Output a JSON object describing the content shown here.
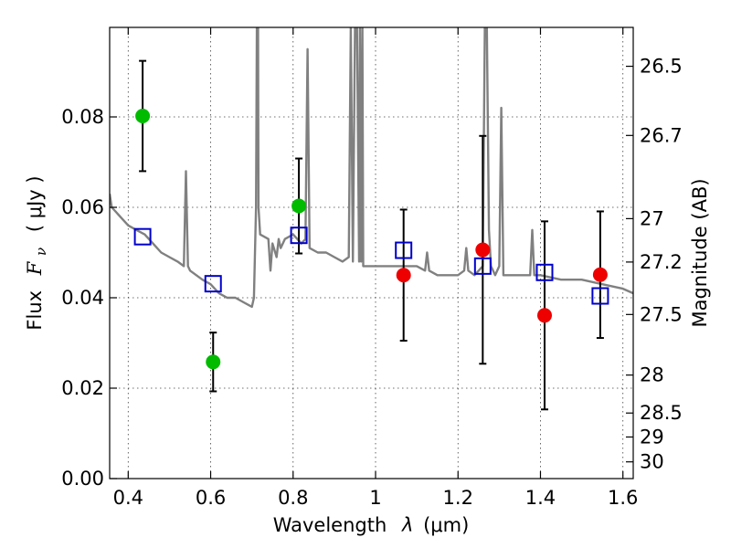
{
  "chart_data": {
    "type": "scatter",
    "xlabel": "Wavelength",
    "xlabel_symbol": "λ",
    "xlabel_unit": "(μm)",
    "ylabel_prefix": "Flux",
    "ylabel_symbol": "F",
    "ylabel_subscript": "ν",
    "ylabel_unit": "( μJy )",
    "ylabel_right": "Magnitude (AB)",
    "xlim": [
      0.355,
      1.625
    ],
    "ylim": [
      0.0,
      0.0998
    ],
    "x_ticks": [
      0.4,
      0.6,
      0.8,
      1.0,
      1.2,
      1.4,
      1.6
    ],
    "x_tick_labels": [
      "0.4",
      "0.6",
      "0.8",
      "1",
      "1.2",
      "1.4",
      "1.6"
    ],
    "y_ticks": [
      0.0,
      0.02,
      0.04,
      0.06,
      0.08
    ],
    "y_tick_labels": [
      "0.00",
      "0.02",
      "0.04",
      "0.06",
      "0.08"
    ],
    "right_ticks": [
      {
        "flux": 0.0912,
        "label": "26.5"
      },
      {
        "flux": 0.0759,
        "label": "26.7"
      },
      {
        "flux": 0.0575,
        "label": "27"
      },
      {
        "flux": 0.0479,
        "label": "27.2"
      },
      {
        "flux": 0.0363,
        "label": "27.5"
      },
      {
        "flux": 0.0229,
        "label": "28"
      },
      {
        "flux": 0.0145,
        "label": "28.5"
      },
      {
        "flux": 0.0092,
        "label": "29"
      },
      {
        "flux": 0.0037,
        "label": "30"
      }
    ],
    "grid": true,
    "series": [
      {
        "name": "green_points",
        "color": "#00bb00",
        "marker": "circle",
        "points": [
          {
            "x": 0.435,
            "y": 0.0802,
            "yerr": [
              0.0122,
              0.0122
            ]
          },
          {
            "x": 0.606,
            "y": 0.0258,
            "yerr": [
              0.0065,
              0.0065
            ]
          },
          {
            "x": 0.814,
            "y": 0.0603,
            "yerr": [
              0.0105,
              0.0105
            ]
          }
        ]
      },
      {
        "name": "red_points",
        "color": "#ee0000",
        "marker": "circle",
        "points": [
          {
            "x": 1.068,
            "y": 0.045,
            "yerr": [
              0.0145,
              0.0145
            ]
          },
          {
            "x": 1.26,
            "y": 0.0506,
            "yerr": [
              0.0252,
              0.0252
            ]
          },
          {
            "x": 1.41,
            "y": 0.0361,
            "yerr": [
              0.0208,
              0.0208
            ]
          },
          {
            "x": 1.545,
            "y": 0.0451,
            "yerr": [
              0.014,
              0.014
            ]
          }
        ]
      },
      {
        "name": "model_squares",
        "color": "#0000cc",
        "marker": "square_open",
        "points": [
          {
            "x": 0.435,
            "y": 0.0535
          },
          {
            "x": 0.606,
            "y": 0.0431
          },
          {
            "x": 0.814,
            "y": 0.0538
          },
          {
            "x": 1.068,
            "y": 0.0505
          },
          {
            "x": 1.26,
            "y": 0.047
          },
          {
            "x": 1.41,
            "y": 0.0456
          },
          {
            "x": 1.545,
            "y": 0.0404
          }
        ]
      }
    ],
    "spectrum": {
      "name": "model_spectrum",
      "color": "#808080",
      "type": "line",
      "x": [
        0.355,
        0.36,
        0.38,
        0.4,
        0.42,
        0.44,
        0.46,
        0.48,
        0.5,
        0.52,
        0.535,
        0.54,
        0.545,
        0.55,
        0.58,
        0.6,
        0.62,
        0.64,
        0.66,
        0.68,
        0.7,
        0.705,
        0.71,
        0.712,
        0.715,
        0.716,
        0.72,
        0.74,
        0.745,
        0.75,
        0.76,
        0.765,
        0.77,
        0.78,
        0.8,
        0.82,
        0.83,
        0.835,
        0.84,
        0.86,
        0.88,
        0.9,
        0.92,
        0.935,
        0.94,
        0.945,
        0.95,
        0.955,
        0.96,
        0.962,
        0.965,
        0.968,
        0.97,
        0.975,
        1.0,
        1.05,
        1.1,
        1.12,
        1.125,
        1.13,
        1.15,
        1.2,
        1.215,
        1.22,
        1.225,
        1.24,
        1.26,
        1.265,
        1.27,
        1.275,
        1.28,
        1.29,
        1.3,
        1.305,
        1.31,
        1.35,
        1.375,
        1.38,
        1.385,
        1.4,
        1.45,
        1.5,
        1.55,
        1.6,
        1.625
      ],
      "y": [
        0.063,
        0.06,
        0.058,
        0.056,
        0.055,
        0.054,
        0.052,
        0.05,
        0.049,
        0.048,
        0.047,
        0.068,
        0.047,
        0.046,
        0.044,
        0.043,
        0.041,
        0.04,
        0.04,
        0.039,
        0.038,
        0.04,
        0.06,
        0.1,
        0.1,
        0.06,
        0.054,
        0.053,
        0.046,
        0.052,
        0.049,
        0.053,
        0.051,
        0.053,
        0.054,
        0.052,
        0.053,
        0.095,
        0.051,
        0.05,
        0.05,
        0.049,
        0.048,
        0.049,
        0.1,
        0.048,
        0.1,
        0.1,
        0.048,
        0.1,
        0.048,
        0.1,
        0.047,
        0.047,
        0.047,
        0.047,
        0.047,
        0.046,
        0.05,
        0.046,
        0.045,
        0.045,
        0.046,
        0.051,
        0.046,
        0.045,
        0.047,
        0.1,
        0.1,
        0.055,
        0.047,
        0.045,
        0.047,
        0.082,
        0.045,
        0.045,
        0.045,
        0.055,
        0.045,
        0.045,
        0.044,
        0.044,
        0.043,
        0.042,
        0.041
      ]
    }
  }
}
